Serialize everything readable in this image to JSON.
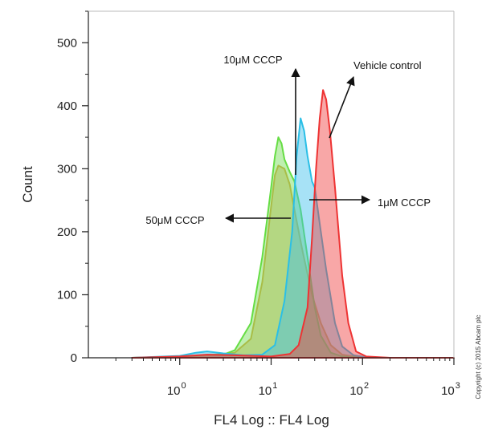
{
  "chart_data": {
    "type": "area",
    "title": "",
    "xlabel": "FL4 Log :: FL4 Log",
    "ylabel": "Count",
    "x_scale": "log",
    "xlim": [
      0.1,
      1000
    ],
    "ylim": [
      0,
      550
    ],
    "x_ticks": [
      {
        "value": 1,
        "base": "10",
        "exp": "0"
      },
      {
        "value": 10,
        "base": "10",
        "exp": "1"
      },
      {
        "value": 100,
        "base": "10",
        "exp": "2"
      },
      {
        "value": 1000,
        "base": "10",
        "exp": "3"
      }
    ],
    "y_ticks": [
      0,
      100,
      200,
      300,
      400,
      500
    ],
    "grid": false,
    "series": [
      {
        "name": "50μM CCCP",
        "color": "#d9a441",
        "fill": "rgba(215,160,70,0.45)",
        "points": [
          [
            0.3,
            0
          ],
          [
            1,
            1
          ],
          [
            2,
            4
          ],
          [
            4,
            8
          ],
          [
            6,
            30
          ],
          [
            8,
            120
          ],
          [
            10,
            240
          ],
          [
            11,
            290
          ],
          [
            12,
            305
          ],
          [
            14,
            300
          ],
          [
            16,
            275
          ],
          [
            18,
            235
          ],
          [
            22,
            170
          ],
          [
            28,
            100
          ],
          [
            35,
            55
          ],
          [
            45,
            20
          ],
          [
            60,
            5
          ],
          [
            90,
            1
          ],
          [
            200,
            0
          ],
          [
            1000,
            0
          ]
        ]
      },
      {
        "name": "10μM CCCP",
        "color": "#66dd44",
        "fill": "rgba(110,220,80,0.45)",
        "points": [
          [
            0.3,
            0
          ],
          [
            1,
            2
          ],
          [
            1.5,
            3
          ],
          [
            2,
            5
          ],
          [
            3,
            5
          ],
          [
            4,
            12
          ],
          [
            6,
            55
          ],
          [
            8,
            160
          ],
          [
            10,
            270
          ],
          [
            11,
            320
          ],
          [
            12,
            350
          ],
          [
            13,
            340
          ],
          [
            14,
            315
          ],
          [
            16,
            295
          ],
          [
            18,
            280
          ],
          [
            21,
            235
          ],
          [
            25,
            160
          ],
          [
            30,
            80
          ],
          [
            35,
            35
          ],
          [
            45,
            8
          ],
          [
            60,
            2
          ],
          [
            100,
            0
          ],
          [
            1000,
            0
          ]
        ]
      },
      {
        "name": "1μM CCCP",
        "color": "#2bbfe6",
        "fill": "rgba(60,190,235,0.45)",
        "points": [
          [
            0.3,
            0
          ],
          [
            1,
            3
          ],
          [
            1.5,
            8
          ],
          [
            2,
            10
          ],
          [
            3,
            7
          ],
          [
            5,
            4
          ],
          [
            8,
            5
          ],
          [
            11,
            20
          ],
          [
            14,
            90
          ],
          [
            17,
            200
          ],
          [
            19,
            320
          ],
          [
            21,
            380
          ],
          [
            23,
            360
          ],
          [
            25,
            320
          ],
          [
            28,
            280
          ],
          [
            30,
            270
          ],
          [
            35,
            200
          ],
          [
            40,
            140
          ],
          [
            50,
            55
          ],
          [
            60,
            18
          ],
          [
            80,
            4
          ],
          [
            120,
            0
          ],
          [
            1000,
            0
          ]
        ]
      },
      {
        "name": "Vehicle control",
        "color": "#ee3333",
        "fill": "rgba(240,60,60,0.45)",
        "points": [
          [
            0.3,
            0
          ],
          [
            1,
            2
          ],
          [
            2,
            5
          ],
          [
            4,
            4
          ],
          [
            10,
            2
          ],
          [
            16,
            6
          ],
          [
            20,
            20
          ],
          [
            25,
            80
          ],
          [
            28,
            190
          ],
          [
            31,
            300
          ],
          [
            34,
            380
          ],
          [
            37,
            425
          ],
          [
            40,
            410
          ],
          [
            44,
            360
          ],
          [
            50,
            270
          ],
          [
            60,
            130
          ],
          [
            70,
            55
          ],
          [
            85,
            10
          ],
          [
            110,
            2
          ],
          [
            200,
            0
          ],
          [
            1000,
            0
          ]
        ]
      }
    ],
    "annotations": [
      {
        "label": "10μM CCCP"
      },
      {
        "label": "Vehicle control"
      },
      {
        "label": "1μM CCCP"
      },
      {
        "label": "50μM CCCP"
      }
    ]
  },
  "copyright": "Copyright (c) 2015 Abcam plc"
}
